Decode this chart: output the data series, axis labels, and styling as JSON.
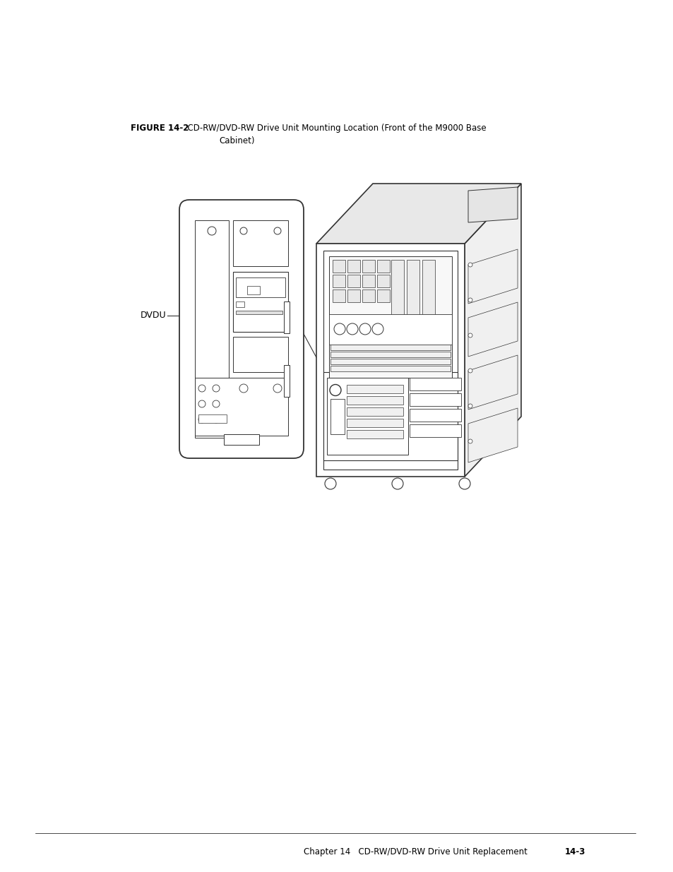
{
  "background_color": "#ffffff",
  "line_color": "#333333",
  "light_gray": "#e0e0e0",
  "mid_gray": "#c0c0c0",
  "title_bold": "FIGURE 14-2",
  "title_normal": "  CD-RW/DVD-RW Drive Unit Mounting Location (Front of the M9000 Base",
  "title_line2": "Cabinet)",
  "footer_normal": "Chapter 14   CD-RW/DVD-RW Drive Unit Replacement   ",
  "footer_bold": "14-3",
  "dvdu_label": "DVDU",
  "fig_width": 9.54,
  "fig_height": 12.35
}
